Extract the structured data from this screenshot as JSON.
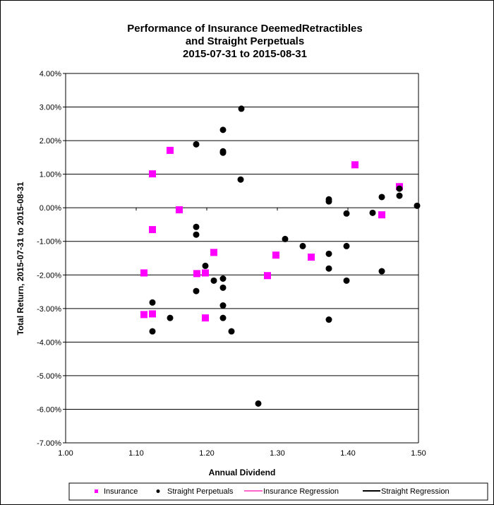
{
  "chart_data": {
    "type": "scatter",
    "title": [
      "Performance of Insurance DeemedRetractibles",
      "and Straight Perpetuals",
      "2015-07-31 to 2015-08-31"
    ],
    "xlabel": "Annual Dividend",
    "ylabel": "Total Return, 2015-07-31  to 2015-08-31",
    "xlim": [
      1.0,
      1.5
    ],
    "ylim": [
      -7.0,
      4.0
    ],
    "x_ticks": [
      "1.00",
      "1.10",
      "1.20",
      "1.30",
      "1.40",
      "1.50"
    ],
    "y_ticks": [
      "4.00%",
      "3.00%",
      "2.00%",
      "1.00%",
      "0.00%",
      "-1.00%",
      "-2.00%",
      "-3.00%",
      "-4.00%",
      "-5.00%",
      "-6.00%",
      "-7.00%"
    ],
    "grid": "horizontal",
    "legend_position": "bottom",
    "colors": {
      "insurance": "#ff00ff",
      "straight": "#000000",
      "insurance_regression": "#ff66cc",
      "straight_regression": "#000000"
    },
    "legend": [
      "Insurance",
      "Straight Perpetuals",
      "Insurance Regression",
      "Straight Regression"
    ],
    "series": [
      {
        "name": "Insurance",
        "marker": "square",
        "points": [
          [
            1.123,
            1.01
          ],
          [
            1.148,
            1.71
          ],
          [
            1.161,
            -0.06
          ],
          [
            1.123,
            -0.65
          ],
          [
            1.111,
            -1.94
          ],
          [
            1.111,
            -3.18
          ],
          [
            1.123,
            -3.16
          ],
          [
            1.186,
            -1.96
          ],
          [
            1.198,
            -1.94
          ],
          [
            1.198,
            -3.28
          ],
          [
            1.21,
            -1.33
          ],
          [
            1.286,
            -2.02
          ],
          [
            1.298,
            -1.41
          ],
          [
            1.348,
            -1.47
          ],
          [
            1.41,
            1.28
          ],
          [
            1.448,
            -0.21
          ],
          [
            1.473,
            0.63
          ]
        ]
      },
      {
        "name": "Straight Perpetuals",
        "marker": "circle",
        "points": [
          [
            1.185,
            1.89
          ],
          [
            1.249,
            2.95
          ],
          [
            1.223,
            2.32
          ],
          [
            1.223,
            1.68
          ],
          [
            1.223,
            1.64
          ],
          [
            1.248,
            0.84
          ],
          [
            1.185,
            -0.57
          ],
          [
            1.185,
            -0.8
          ],
          [
            1.198,
            -1.73
          ],
          [
            1.185,
            -2.48
          ],
          [
            1.21,
            -2.17
          ],
          [
            1.223,
            -2.11
          ],
          [
            1.223,
            -2.38
          ],
          [
            1.223,
            -2.91
          ],
          [
            1.223,
            -3.28
          ],
          [
            1.235,
            -3.68
          ],
          [
            1.148,
            -3.28
          ],
          [
            1.123,
            -2.82
          ],
          [
            1.123,
            -3.68
          ],
          [
            1.273,
            -5.83
          ],
          [
            1.311,
            -0.93
          ],
          [
            1.336,
            -1.14
          ],
          [
            1.373,
            0.25
          ],
          [
            1.373,
            0.19
          ],
          [
            1.373,
            -1.37
          ],
          [
            1.373,
            -1.81
          ],
          [
            1.373,
            -3.33
          ],
          [
            1.398,
            -0.17
          ],
          [
            1.398,
            -1.14
          ],
          [
            1.398,
            -2.17
          ],
          [
            1.435,
            -0.15
          ],
          [
            1.448,
            0.32
          ],
          [
            1.448,
            -1.89
          ],
          [
            1.473,
            0.57
          ],
          [
            1.473,
            0.36
          ],
          [
            1.498,
            0.06
          ]
        ]
      }
    ]
  }
}
